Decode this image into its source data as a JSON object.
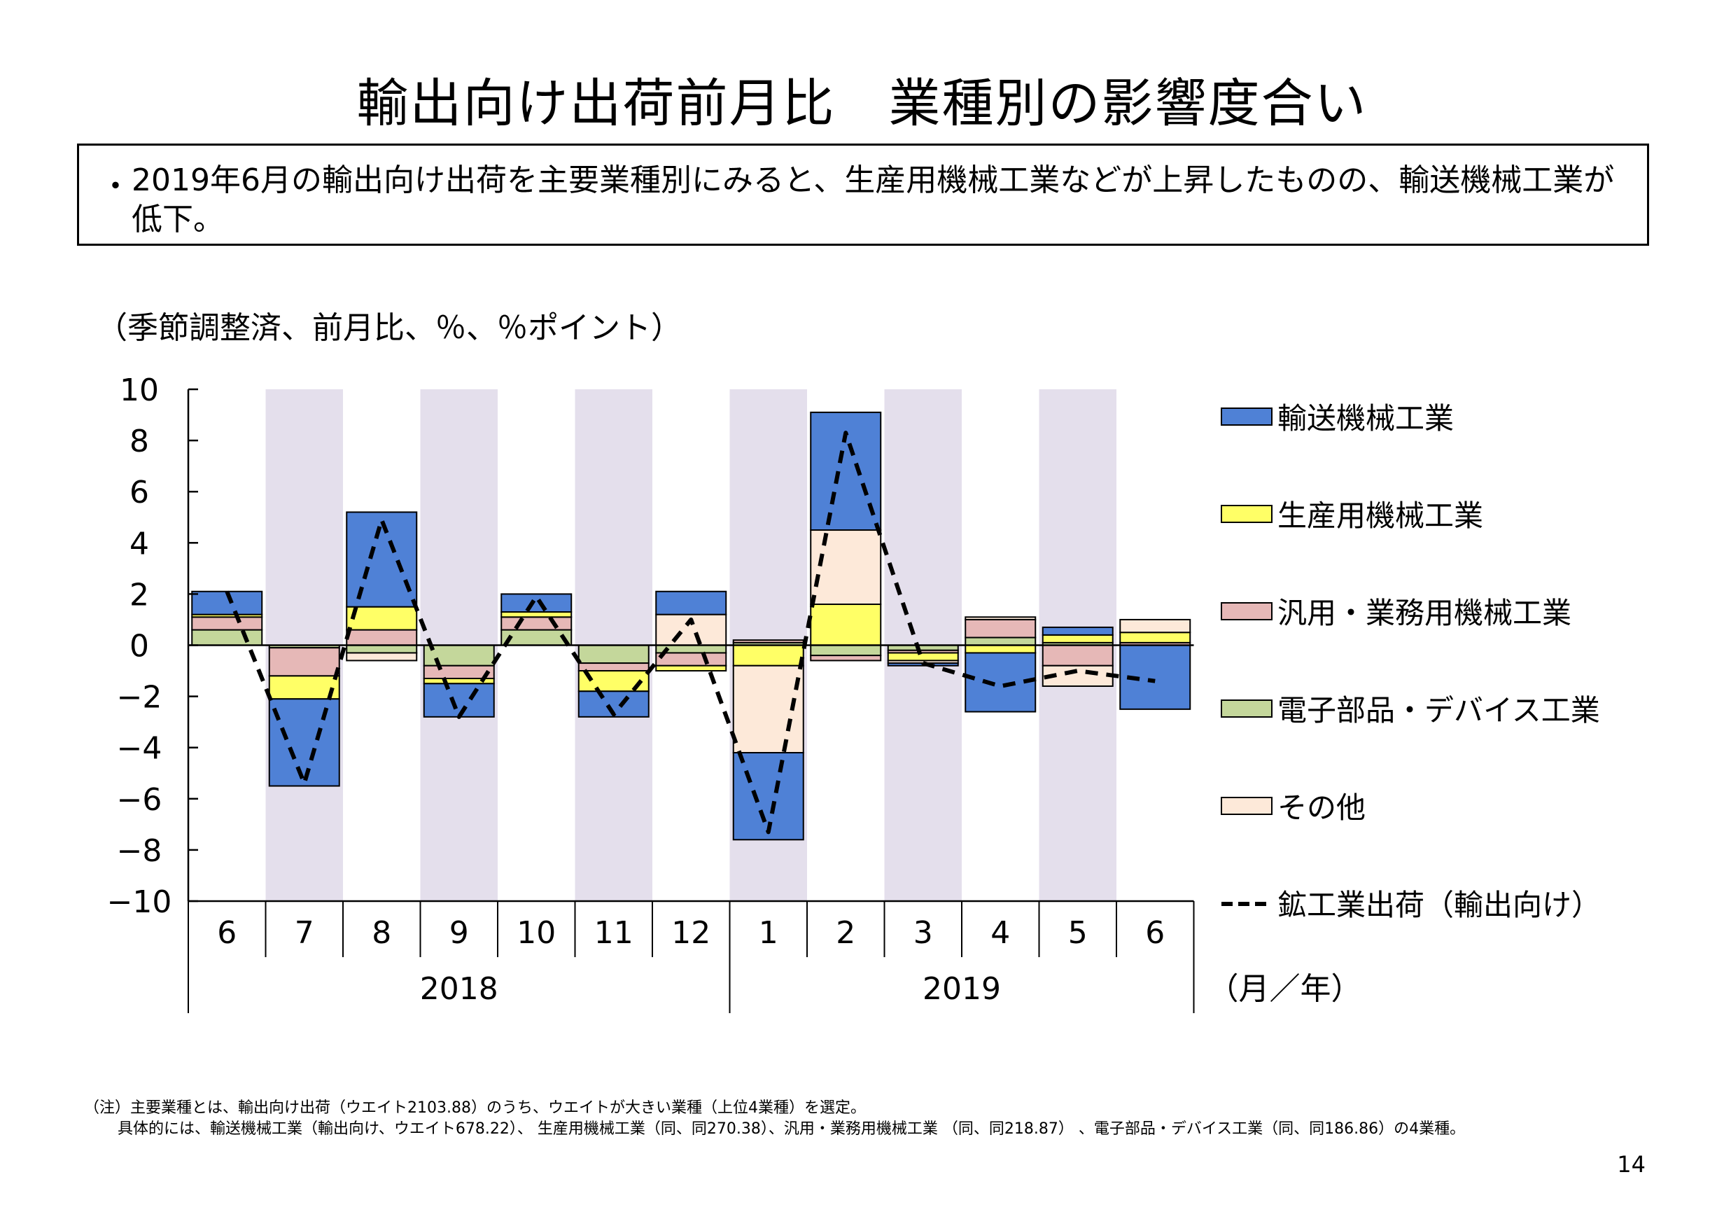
{
  "title": "輸出向け出荷前月比　業種別の影響度合い",
  "summary": {
    "bullet": "・",
    "text": "2019年6月の輸出向け出荷を主要業種別にみると、生産用機械工業などが上昇したものの、輸送機械工業が低下。"
  },
  "unit_label": "（季節調整済、前月比、％、％ポイント）",
  "notes": [
    "（注）主要業種とは、輸出向け出荷（ウエイト2103.88）のうち、ウエイトが大きい業種（上位4業種）を選定。",
    "具体的には、輸送機械工業（輸出向け、ウエイト678.22）、 生産用機械工業（同、同270.38）、汎用・業務用機械工業 （同、同218.87） 、電子部品・デバイス工業（同、同186.86）の4業種。"
  ],
  "page_number": "14",
  "chart_data": {
    "type": "bar",
    "stacked": true,
    "ylim": [
      -10,
      10
    ],
    "yticks": [
      10,
      8,
      6,
      4,
      2,
      0,
      -2,
      -4,
      -6,
      -8,
      -10
    ],
    "ytick_labels": [
      "10",
      "8",
      "6",
      "4",
      "2",
      "0",
      "−2",
      "−4",
      "−6",
      "−8",
      "−10"
    ],
    "categories": [
      "6",
      "7",
      "8",
      "9",
      "10",
      "11",
      "12",
      "1",
      "2",
      "3",
      "4",
      "5",
      "6"
    ],
    "year_groups": [
      {
        "label": "2018",
        "start": 0,
        "end": 6
      },
      {
        "label": "2019",
        "start": 7,
        "end": 12
      }
    ],
    "xunit_label": "（月／年）",
    "shaded_categories": [
      1,
      3,
      5,
      7,
      9,
      11
    ],
    "shade_color": "#e4dfec",
    "series": [
      {
        "name": "電子部品・デバイス工業",
        "color": "#c4d79b",
        "values": [
          0.6,
          -0.1,
          -0.3,
          -0.8,
          0.6,
          -0.7,
          -0.3,
          0.1,
          -0.4,
          -0.2,
          0.3,
          0.1,
          0.0
        ]
      },
      {
        "name": "汎用・業務用機械工業",
        "color": "#e6b8b7",
        "values": [
          0.5,
          -1.1,
          0.6,
          -0.5,
          0.5,
          -0.3,
          -0.5,
          0.1,
          -0.2,
          -0.1,
          0.7,
          -0.8,
          0.1
        ]
      },
      {
        "name": "生産用機械工業",
        "color": "#ffff66",
        "values": [
          0.1,
          -0.9,
          0.9,
          -0.2,
          0.2,
          -0.8,
          -0.2,
          -0.8,
          1.6,
          -0.3,
          -0.3,
          0.3,
          0.4
        ]
      },
      {
        "name": "その他",
        "color": "#fde9d9",
        "values": [
          0.0,
          0.0,
          -0.3,
          0.0,
          0.0,
          0.0,
          1.2,
          -3.4,
          2.9,
          -0.1,
          0.1,
          -0.8,
          0.5
        ]
      },
      {
        "name": "輸送機械工業",
        "color": "#4f81d6",
        "values": [
          0.9,
          -3.4,
          3.7,
          -1.3,
          0.7,
          -1.0,
          0.9,
          -3.4,
          4.6,
          -0.1,
          -2.3,
          0.3,
          -2.5
        ]
      }
    ],
    "legend_order": [
      4,
      2,
      1,
      0,
      3
    ],
    "line": {
      "name": "鉱工業出荷（輸出向け）",
      "color": "#000000",
      "dashed": true,
      "values": [
        2.1,
        -5.4,
        4.9,
        -2.8,
        1.9,
        -2.7,
        1.0,
        -7.3,
        8.3,
        -0.7,
        -1.6,
        -1.0,
        -1.4
      ]
    },
    "legend_position": "right"
  }
}
